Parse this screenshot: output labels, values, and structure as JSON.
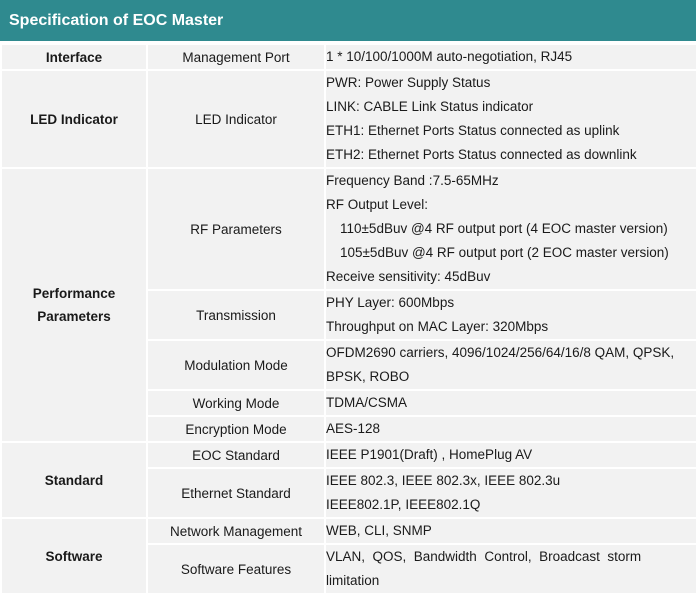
{
  "title": "Specification of EOC Master",
  "sections": [
    {
      "category": [
        "Interface"
      ],
      "rows": [
        {
          "label": "Management Port",
          "values": [
            "1 * 10/100/1000M auto-negotiation, RJ45"
          ]
        }
      ]
    },
    {
      "category": [
        "LED Indicator"
      ],
      "rows": [
        {
          "label": "LED Indicator",
          "values": [
            "PWR: Power Supply Status",
            "LINK: CABLE Link Status indicator",
            "ETH1: Ethernet Ports Status connected as uplink",
            "ETH2: Ethernet Ports Status connected as downlink"
          ]
        }
      ]
    },
    {
      "category": [
        "Performance",
        "Parameters"
      ],
      "rows": [
        {
          "label": "RF Parameters",
          "values": [
            "Frequency Band :7.5-65MHz",
            "RF Output Level:",
            "110±5dBuv @4 RF output port (4 EOC master version)",
            "105±5dBuv @4 RF output port (2 EOC master version)",
            "Receive sensitivity: 45dBuv"
          ]
        },
        {
          "label": "Transmission",
          "values": [
            "PHY Layer: 600Mbps",
            "Throughput on MAC Layer: 320Mbps"
          ]
        },
        {
          "label": "Modulation Mode",
          "values": [
            "OFDM2690 carriers, 4096/1024/256/64/16/8 QAM, QPSK,",
            "BPSK, ROBO"
          ]
        },
        {
          "label": "Working Mode",
          "values": [
            "TDMA/CSMA"
          ]
        },
        {
          "label": "Encryption Mode",
          "values": [
            "AES-128"
          ]
        }
      ]
    },
    {
      "category": [
        "Standard"
      ],
      "rows": [
        {
          "label": "EOC Standard",
          "values": [
            "IEEE P1901(Draft) , HomePlug AV"
          ]
        },
        {
          "label": "Ethernet Standard",
          "values": [
            "IEEE 802.3, IEEE 802.3x, IEEE 802.3u",
            "IEEE802.1P, IEEE802.1Q"
          ]
        }
      ]
    },
    {
      "category": [
        "Software"
      ],
      "rows": [
        {
          "label": "Network Management",
          "values": [
            "WEB, CLI, SNMP"
          ]
        },
        {
          "label": "Software Features",
          "values": [
            "VLAN,  QOS,  Bandwidth  Control,  Broadcast  storm",
            "limitation"
          ]
        }
      ]
    }
  ]
}
